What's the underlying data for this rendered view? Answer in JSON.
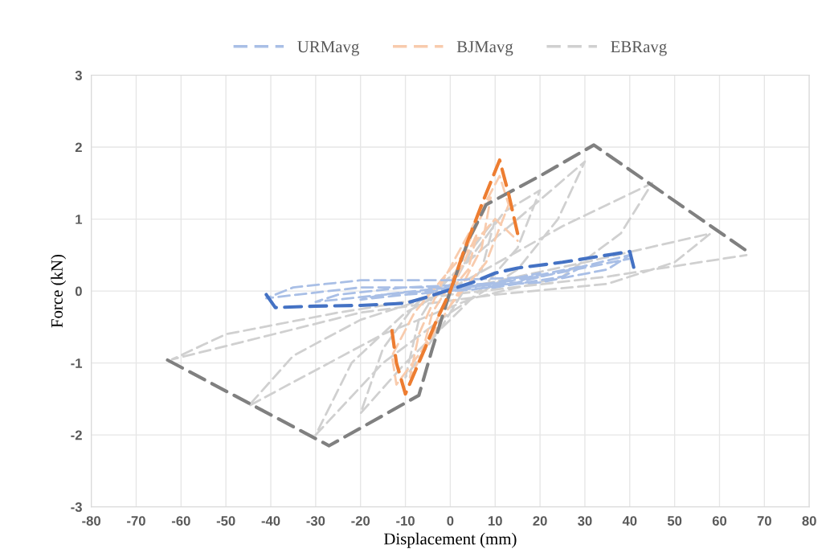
{
  "chart_data": {
    "type": "line",
    "xlabel": "Displacement (mm)",
    "ylabel": "Force (kN)",
    "xlim": [
      -80,
      80
    ],
    "xticks": [
      -80,
      -70,
      -60,
      -50,
      -40,
      -30,
      -20,
      -10,
      0,
      10,
      20,
      30,
      40,
      50,
      60,
      70,
      80
    ],
    "ylim": [
      -3,
      3
    ],
    "yticks": [
      -3,
      -2,
      -1,
      0,
      1,
      2,
      3
    ],
    "grid": true,
    "legend": "top",
    "line_style": "dashed",
    "marker": "none",
    "series": [
      {
        "name": "URMavg",
        "color": "#a9bfe6",
        "x": [
          0,
          10,
          20,
          15,
          5,
          -10,
          -20,
          -15,
          -5,
          10,
          30,
          25,
          10,
          -10,
          -30,
          -25,
          -10,
          15,
          40,
          35,
          20,
          0,
          -20,
          -41,
          -35,
          -20,
          0,
          20,
          40
        ],
        "values": [
          0,
          0.12,
          0.25,
          0.12,
          0.02,
          -0.05,
          -0.12,
          -0.05,
          0.02,
          0.1,
          0.35,
          0.2,
          0.05,
          -0.02,
          -0.15,
          -0.05,
          0.05,
          0.12,
          0.5,
          0.3,
          0.12,
          0.05,
          0.05,
          -0.1,
          0.05,
          0.15,
          0.15,
          0.2,
          0.45
        ]
      },
      {
        "name": "BJMavg",
        "color": "#f8cbad",
        "x": [
          0,
          3,
          6,
          4,
          0,
          -3,
          -6,
          -4,
          0,
          5,
          9,
          7,
          2,
          -3,
          -9,
          -7,
          -2,
          5,
          11,
          13,
          8,
          0,
          -6,
          -12,
          -13,
          -8,
          0,
          10,
          15
        ],
        "values": [
          0,
          0.4,
          0.8,
          0.3,
          0,
          -0.4,
          -0.8,
          -0.3,
          0.1,
          0.8,
          1.3,
          0.6,
          0,
          -0.5,
          -1.2,
          -0.6,
          0.1,
          0.9,
          1.6,
          1.2,
          0.4,
          -0.2,
          -0.8,
          -1.3,
          -0.9,
          -0.3,
          0.3,
          1.0,
          0.7
        ]
      },
      {
        "name": "EBRavg",
        "color": "#d0d0d0",
        "x": [
          0,
          5,
          10,
          7,
          3,
          -2,
          -10,
          -7,
          -3,
          5,
          12,
          20,
          15,
          8,
          0,
          -10,
          -20,
          -15,
          -8,
          0,
          15,
          30,
          24,
          15,
          0,
          -15,
          -30,
          -22,
          -10,
          5,
          25,
          45,
          38,
          25,
          5,
          -15,
          -45,
          -35,
          -20,
          0,
          30,
          58,
          50,
          35,
          10,
          -20,
          -62,
          -50,
          -25,
          0,
          35,
          66
        ],
        "values": [
          0,
          0.6,
          1.0,
          0.3,
          0,
          -0.5,
          -1.2,
          -0.4,
          0,
          0.5,
          1.1,
          1.4,
          0.6,
          0.1,
          -0.4,
          -1.0,
          -1.7,
          -0.8,
          -0.2,
          0.2,
          1.0,
          1.8,
          1.0,
          0.3,
          -0.3,
          -1.0,
          -2.0,
          -1.0,
          -0.3,
          0.2,
          0.9,
          1.5,
          0.8,
          0.2,
          -0.1,
          -0.6,
          -1.6,
          -0.9,
          -0.4,
          0,
          0.4,
          0.8,
          0.4,
          0.1,
          -0.05,
          -0.3,
          -0.95,
          -0.6,
          -0.3,
          -0.05,
          0.2,
          0.5
        ]
      },
      {
        "color": "#808080",
        "x": [
          -63,
          -27,
          -7,
          -4,
          0,
          4,
          8,
          20,
          32,
          66
        ],
        "values": [
          -0.96,
          -2.15,
          -1.45,
          -0.8,
          0,
          0.7,
          1.2,
          1.6,
          2.03,
          0.56
        ]
      },
      {
        "color": "#4472c4",
        "x": [
          -41,
          -39,
          -30,
          -20,
          -10,
          -5,
          0,
          5,
          10,
          15,
          25,
          35,
          40,
          41
        ],
        "values": [
          -0.05,
          -0.23,
          -0.21,
          -0.2,
          -0.17,
          -0.08,
          0.02,
          0.12,
          0.25,
          0.32,
          0.4,
          0.5,
          0.55,
          0.3
        ]
      },
      {
        "color": "#ed7d31",
        "x": [
          -13,
          -12,
          -10,
          -6,
          -3,
          0,
          3,
          7,
          11,
          13,
          15
        ],
        "values": [
          -0.55,
          -1.0,
          -1.43,
          -0.85,
          -0.4,
          0,
          0.55,
          1.2,
          1.82,
          1.35,
          0.8
        ]
      }
    ]
  }
}
